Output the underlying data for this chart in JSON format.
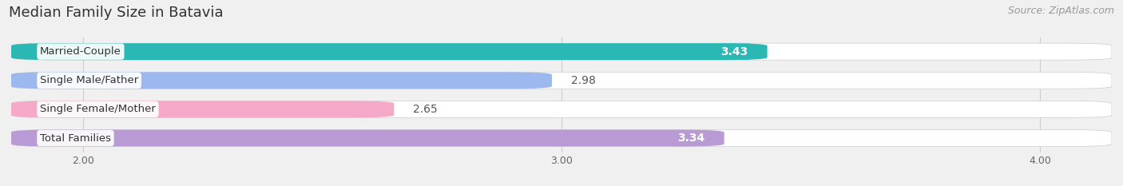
{
  "title": "Median Family Size in Batavia",
  "source": "Source: ZipAtlas.com",
  "categories": [
    "Married-Couple",
    "Single Male/Father",
    "Single Female/Mother",
    "Total Families"
  ],
  "values": [
    3.43,
    2.98,
    2.65,
    3.34
  ],
  "bar_colors": [
    "#29b8b4",
    "#9db8ee",
    "#f5a8c8",
    "#b89ad4"
  ],
  "value_inside": [
    true,
    false,
    false,
    true
  ],
  "xlim_min": 1.85,
  "xlim_max": 4.15,
  "xticks": [
    2.0,
    3.0,
    4.0
  ],
  "xtick_labels": [
    "2.00",
    "3.00",
    "4.00"
  ],
  "title_fontsize": 13,
  "bar_label_fontsize": 10,
  "category_fontsize": 9.5,
  "source_fontsize": 9,
  "background_color": "#f0f0f0",
  "bar_background_color": "#e0e0e0"
}
